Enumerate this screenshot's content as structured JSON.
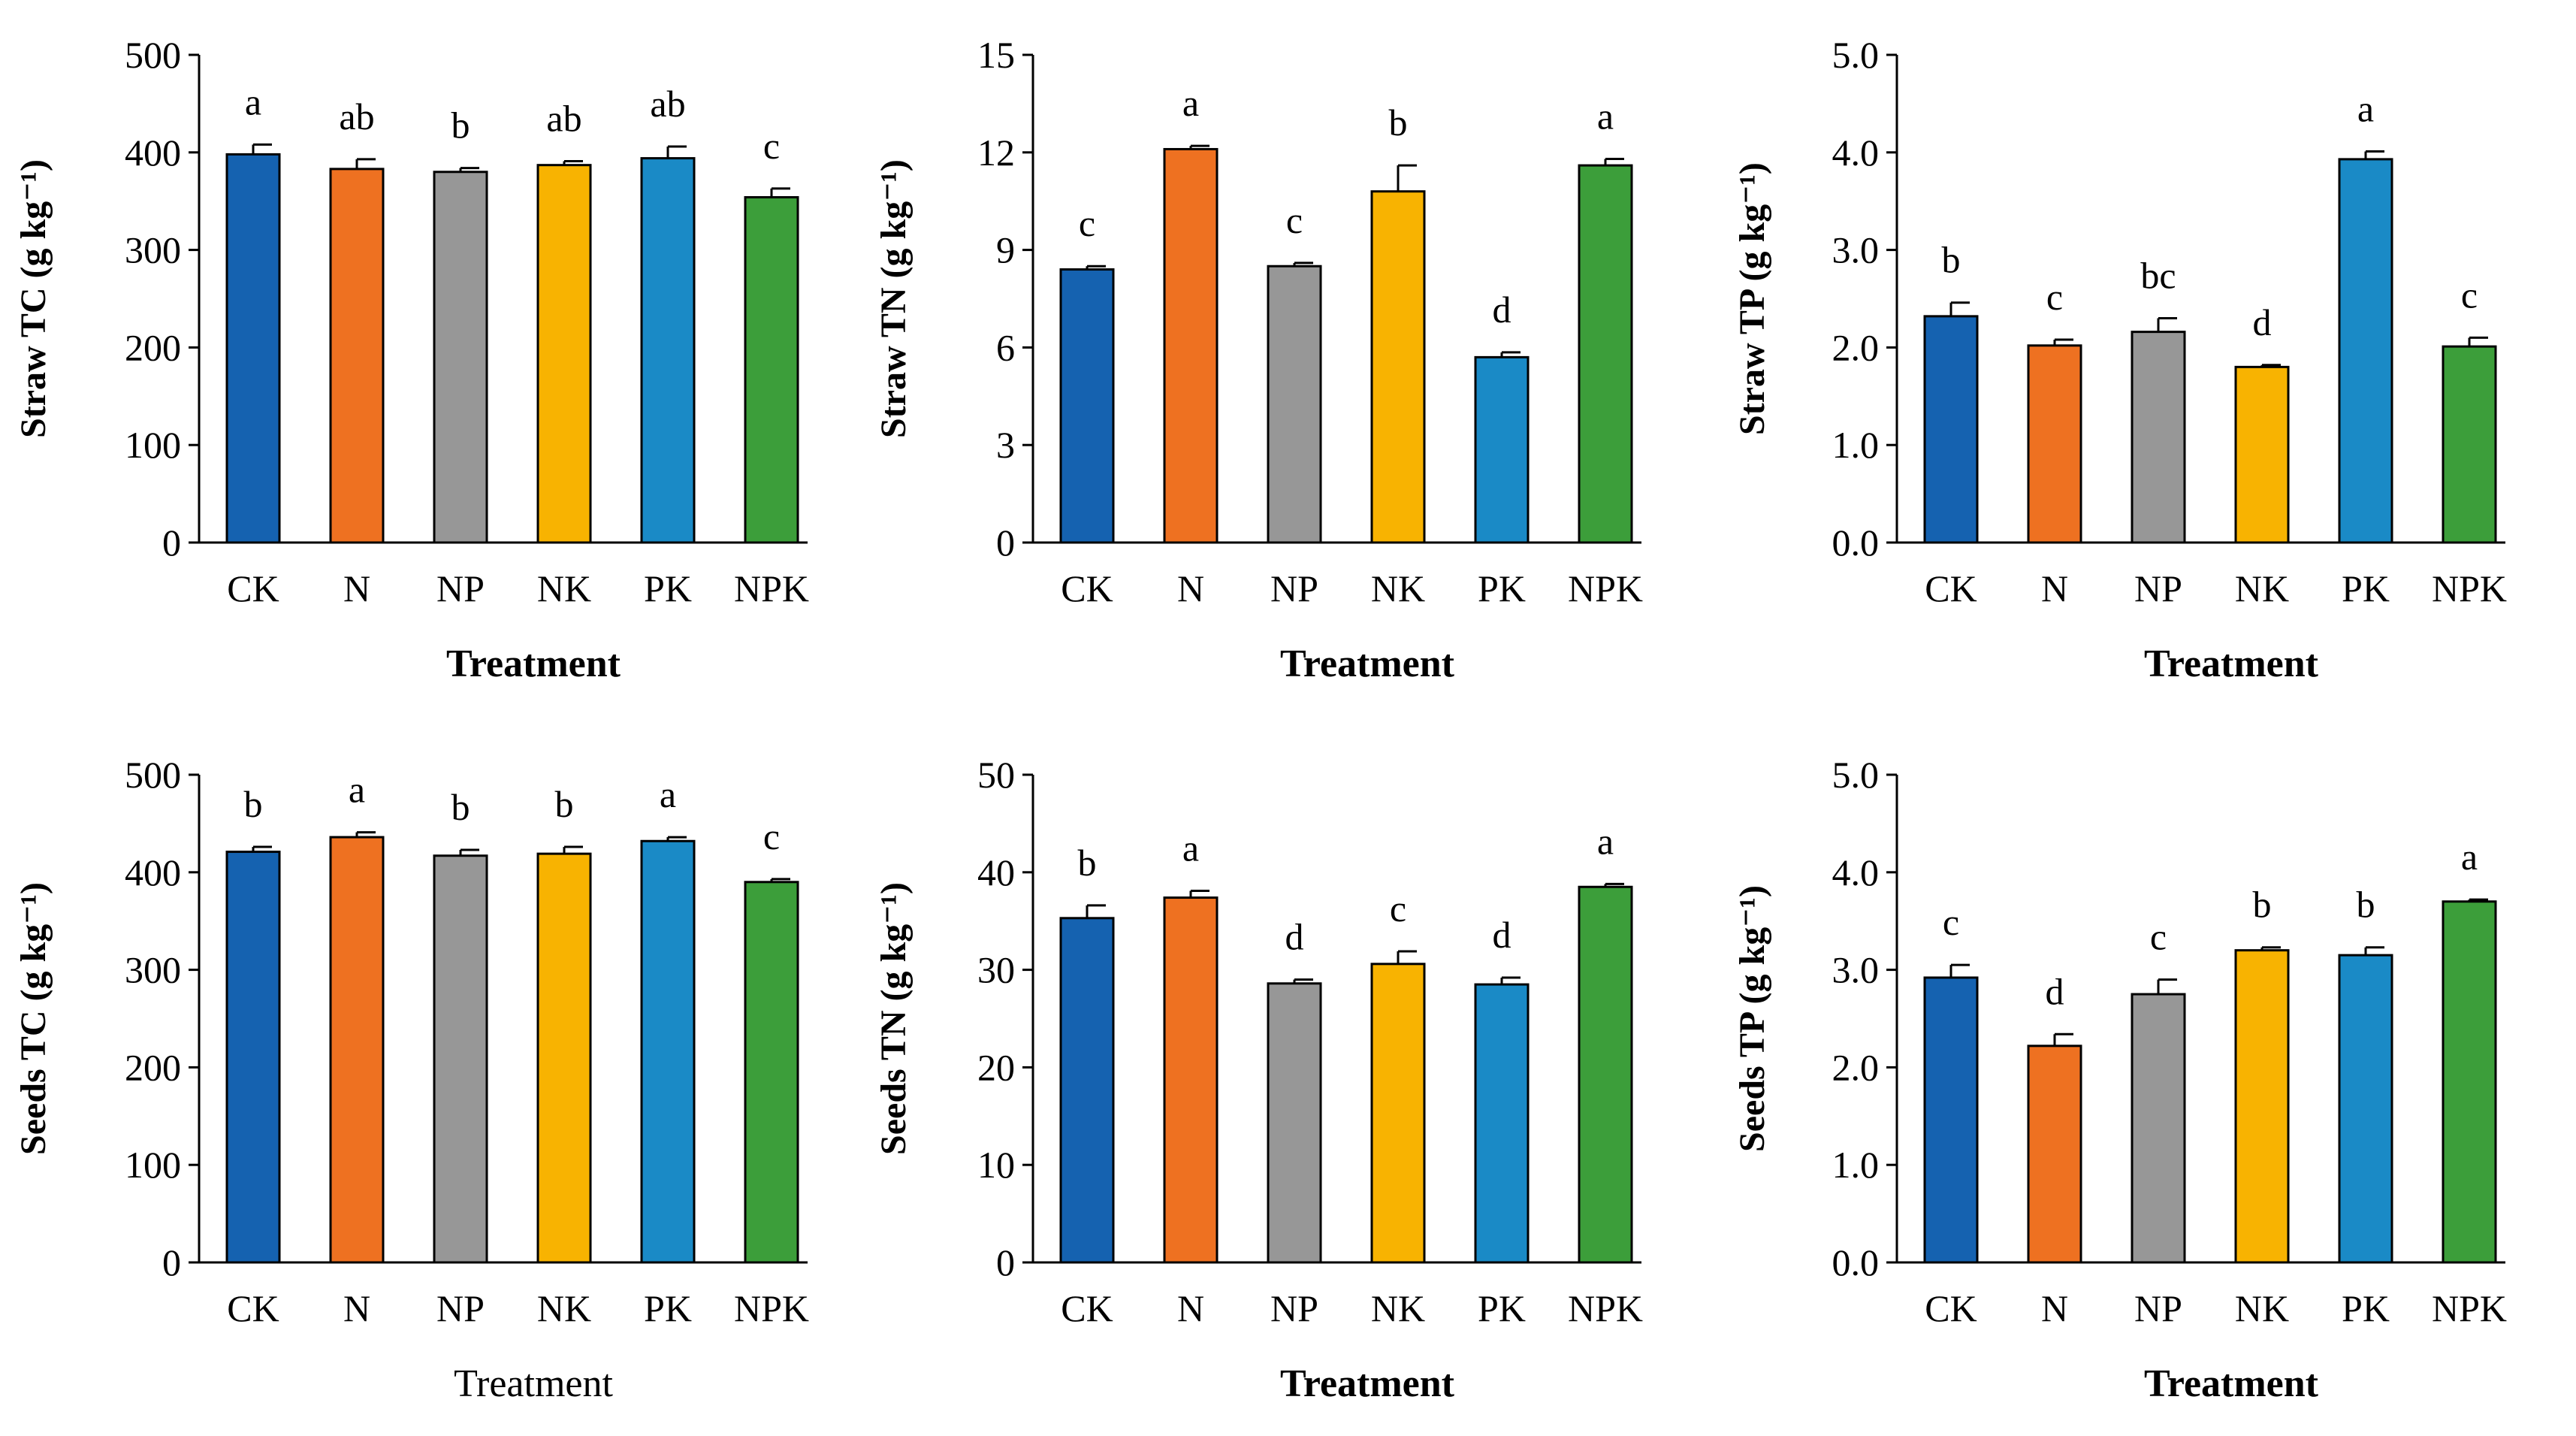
{
  "chart_data": [
    {
      "type": "bar",
      "ylabel": "Straw TC (g kg⁻¹)",
      "xlabel": "Treatment",
      "xlabel_bold": true,
      "ylim": [
        0,
        500
      ],
      "yticks": [
        "0",
        "100",
        "200",
        "300",
        "400",
        "500"
      ],
      "categories": [
        "CK",
        "N",
        "NP",
        "NK",
        "PK",
        "NPK"
      ],
      "values": [
        398,
        383,
        380,
        387,
        394,
        354
      ],
      "errors": [
        10,
        10,
        4,
        4,
        12,
        9
      ],
      "letters": [
        "a",
        "ab",
        "b",
        "ab",
        "ab",
        "c"
      ]
    },
    {
      "type": "bar",
      "ylabel": "Straw TN (g kg⁻¹)",
      "xlabel": "Treatment",
      "xlabel_bold": true,
      "ylim": [
        0,
        15
      ],
      "yticks": [
        "0",
        "3",
        "6",
        "9",
        "12",
        "15"
      ],
      "categories": [
        "CK",
        "N",
        "NP",
        "NK",
        "PK",
        "NPK"
      ],
      "values": [
        8.4,
        12.1,
        8.5,
        10.8,
        5.7,
        11.6
      ],
      "errors": [
        0.1,
        0.1,
        0.1,
        0.8,
        0.15,
        0.2
      ],
      "letters": [
        "c",
        "a",
        "c",
        "b",
        "d",
        "a"
      ]
    },
    {
      "type": "bar",
      "ylabel": "Straw TP (g kg⁻¹)",
      "xlabel": "Treatment",
      "xlabel_bold": true,
      "ylim": [
        0,
        5
      ],
      "yticks": [
        "0.0",
        "1.0",
        "2.0",
        "3.0",
        "4.0",
        "5.0"
      ],
      "categories": [
        "CK",
        "N",
        "NP",
        "NK",
        "PK",
        "NPK"
      ],
      "values": [
        2.32,
        2.02,
        2.16,
        1.8,
        3.93,
        2.01
      ],
      "errors": [
        0.14,
        0.06,
        0.14,
        0.02,
        0.08,
        0.09
      ],
      "letters": [
        "b",
        "c",
        "bc",
        "d",
        "a",
        "c"
      ]
    },
    {
      "type": "bar",
      "ylabel": "Seeds TC (g kg⁻¹)",
      "xlabel": "Treatment",
      "xlabel_bold": false,
      "ylim": [
        0,
        500
      ],
      "yticks": [
        "0",
        "100",
        "200",
        "300",
        "400",
        "500"
      ],
      "categories": [
        "CK",
        "N",
        "NP",
        "NK",
        "PK",
        "NPK"
      ],
      "values": [
        421,
        436,
        417,
        419,
        432,
        390
      ],
      "errors": [
        5,
        5,
        6,
        7,
        4,
        3
      ],
      "letters": [
        "b",
        "a",
        "b",
        "b",
        "a",
        "c"
      ]
    },
    {
      "type": "bar",
      "ylabel": "Seeds TN (g kg⁻¹)",
      "xlabel": "Treatment",
      "xlabel_bold": true,
      "ylim": [
        0,
        50
      ],
      "yticks": [
        "0",
        "10",
        "20",
        "30",
        "40",
        "50"
      ],
      "categories": [
        "CK",
        "N",
        "NP",
        "NK",
        "PK",
        "NPK"
      ],
      "values": [
        35.3,
        37.4,
        28.6,
        30.6,
        28.5,
        38.5
      ],
      "errors": [
        1.3,
        0.7,
        0.4,
        1.3,
        0.7,
        0.3
      ],
      "letters": [
        "b",
        "a",
        "d",
        "c",
        "d",
        "a"
      ]
    },
    {
      "type": "bar",
      "ylabel": "Seeds TP (g kg⁻¹)",
      "xlabel": "Treatment",
      "xlabel_bold": true,
      "ylim": [
        0,
        5
      ],
      "yticks": [
        "0.0",
        "1.0",
        "2.0",
        "3.0",
        "4.0",
        "5.0"
      ],
      "categories": [
        "CK",
        "N",
        "NP",
        "NK",
        "PK",
        "NPK"
      ],
      "values": [
        2.92,
        2.22,
        2.75,
        3.2,
        3.15,
        3.7
      ],
      "errors": [
        0.13,
        0.12,
        0.15,
        0.03,
        0.08,
        0.02
      ],
      "letters": [
        "c",
        "d",
        "c",
        "b",
        "b",
        "a"
      ]
    }
  ],
  "colors": {
    "CK": "#1562b0",
    "N": "#ee7121",
    "NP": "#979797",
    "NK": "#f8b301",
    "PK": "#1a8ac6",
    "NPK": "#3c9e3a",
    "axis": "#000000",
    "background": "#ffffff"
  }
}
